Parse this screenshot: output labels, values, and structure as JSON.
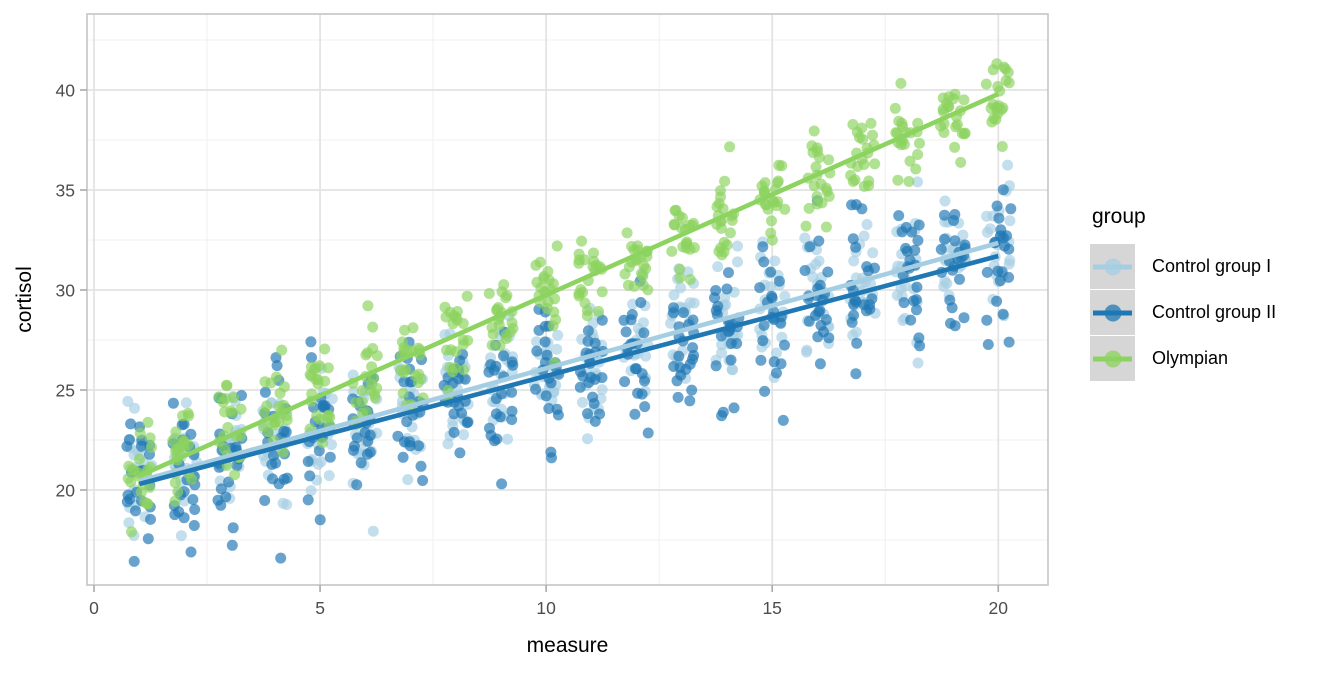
{
  "chart_data": {
    "type": "scatter",
    "title": "",
    "xlabel": "measure",
    "ylabel": "cortisol",
    "xlim": [
      -0.155,
      21.1
    ],
    "ylim": [
      15.25,
      43.8
    ],
    "x_ticks": [
      0,
      5,
      10,
      15,
      20
    ],
    "y_ticks": [
      20,
      25,
      30,
      35,
      40
    ],
    "x_minor_ticks": [
      2.5,
      7.5,
      12.5,
      17.5
    ],
    "y_minor_ticks": [
      17.5,
      22.5,
      27.5,
      32.5,
      37.5,
      42.5
    ],
    "grid": "major+minor",
    "legend": {
      "title": "group",
      "position": "right"
    },
    "measure_min": 1,
    "measure_max": 20,
    "points_style": {
      "radius": 5.5,
      "opacity": 0.68,
      "jitter_width": 0.28
    },
    "trend_line_width": 4.6,
    "seed": 13,
    "series": [
      {
        "name": "Control group I",
        "color": "#a6cee3",
        "trend": {
          "x1": 1,
          "y1": 20.45,
          "x2": 20,
          "y2": 32.35
        },
        "scatter_sd": 1.55,
        "n_per_measure": 22
      },
      {
        "name": "Control group II",
        "color": "#1f78b4",
        "trend": {
          "x1": 1,
          "y1": 20.3,
          "x2": 20,
          "y2": 31.7
        },
        "scatter_sd": 1.8,
        "n_per_measure": 22
      },
      {
        "name": "Olympian",
        "color": "#8CD35F",
        "trend": {
          "x1": 1,
          "y1": 20.7,
          "x2": 20,
          "y2": 39.8
        },
        "scatter_sd": 1.2,
        "n_per_measure": 22
      }
    ],
    "theme": {
      "panel_background": "#ffffff",
      "panel_border": "#c8c8c8",
      "grid_major": "#e3e3e3",
      "grid_minor": "#f1f1f1",
      "tick_color": "#aaaaaa",
      "tick_label_color": "#4d4d4d",
      "axis_title_color": "#000000",
      "legend_key_background": "#d6d6d6",
      "legend_text_color": "#000000"
    }
  }
}
